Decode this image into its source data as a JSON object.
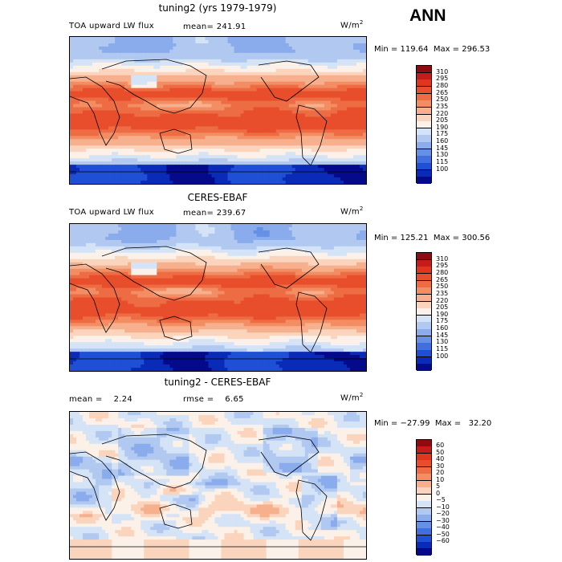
{
  "season": "ANN",
  "units_main": "W/m",
  "units_sup": "2",
  "panels": [
    {
      "title": "tuning2 (yrs 1979-1979)",
      "variable": "TOA upward LW flux",
      "stats_left": "mean=  241.91",
      "minmax": "Min = 119.64  Max = 296.53",
      "levels": [
        "310",
        "295",
        "280",
        "265",
        "250",
        "235",
        "220",
        "205",
        "190",
        "175",
        "160",
        "145",
        "130",
        "115",
        "100"
      ],
      "colors": [
        "#8e0b12",
        "#c51c1b",
        "#e0361d",
        "#e84e2b",
        "#ee6c43",
        "#f38d63",
        "#f7b08e",
        "#fbd4bd",
        "#fbf1e8",
        "#d5e3f6",
        "#b1c9f1",
        "#8bacec",
        "#6690e6",
        "#416fe0",
        "#1f4fd4",
        "#0a2bb8",
        "#050a8a"
      ],
      "kind": "lw_model"
    },
    {
      "title": "CERES-EBAF",
      "variable": "TOA upward LW flux",
      "stats_left": "mean=  239.67",
      "minmax": "Min = 125.21  Max = 300.56",
      "levels": [
        "310",
        "295",
        "280",
        "265",
        "250",
        "235",
        "220",
        "205",
        "190",
        "175",
        "160",
        "145",
        "130",
        "115",
        "100"
      ],
      "colors": [
        "#8e0b12",
        "#c51c1b",
        "#e0361d",
        "#e84e2b",
        "#ee6c43",
        "#f38d63",
        "#f7b08e",
        "#fbd4bd",
        "#fbf1e8",
        "#d5e3f6",
        "#b1c9f1",
        "#8bacec",
        "#6690e6",
        "#416fe0",
        "#1f4fd4",
        "#0a2bb8",
        "#050a8a"
      ],
      "kind": "lw_obs"
    },
    {
      "title": "tuning2 - CERES-EBAF",
      "variable": "",
      "stats_left": "mean =    2.24",
      "stats_right": "rmse =    6.65",
      "minmax": "Min = −27.99  Max =   32.20",
      "levels": [
        "60",
        "50",
        "40",
        "30",
        "20",
        "10",
        "5",
        "0",
        "−5",
        "−10",
        "−20",
        "−30",
        "−40",
        "−50",
        "−60"
      ],
      "colors": [
        "#8e0b12",
        "#c51c1b",
        "#e0361d",
        "#e84e2b",
        "#ee6c43",
        "#f38d63",
        "#f7b08e",
        "#fbd4bd",
        "#fbf1e8",
        "#d5e3f6",
        "#b1c9f1",
        "#8bacec",
        "#6690e6",
        "#416fe0",
        "#1f4fd4",
        "#0a2bb8",
        "#050a8a"
      ],
      "kind": "diff"
    }
  ],
  "chart_data": [
    {
      "type": "heatmap",
      "title": "tuning2 (yrs 1979-1979)",
      "subtitle": "TOA upward LW flux",
      "units": "W/m2",
      "mean": 241.91,
      "min": 119.64,
      "max": 296.53,
      "contour_levels": [
        100,
        115,
        130,
        145,
        160,
        175,
        190,
        205,
        220,
        235,
        250,
        265,
        280,
        295,
        310
      ],
      "x_range": [
        0,
        360
      ],
      "y_range": [
        -90,
        90
      ]
    },
    {
      "type": "heatmap",
      "title": "CERES-EBAF",
      "subtitle": "TOA upward LW flux",
      "units": "W/m2",
      "mean": 239.67,
      "min": 125.21,
      "max": 300.56,
      "contour_levels": [
        100,
        115,
        130,
        145,
        160,
        175,
        190,
        205,
        220,
        235,
        250,
        265,
        280,
        295,
        310
      ],
      "x_range": [
        0,
        360
      ],
      "y_range": [
        -90,
        90
      ]
    },
    {
      "type": "heatmap",
      "title": "tuning2 - CERES-EBAF",
      "units": "W/m2",
      "mean": 2.24,
      "rmse": 6.65,
      "min": -27.99,
      "max": 32.2,
      "contour_levels": [
        -60,
        -50,
        -40,
        -30,
        -20,
        -10,
        -5,
        0,
        5,
        10,
        20,
        30,
        40,
        50,
        60
      ],
      "x_range": [
        0,
        360
      ],
      "y_range": [
        -90,
        90
      ]
    }
  ]
}
